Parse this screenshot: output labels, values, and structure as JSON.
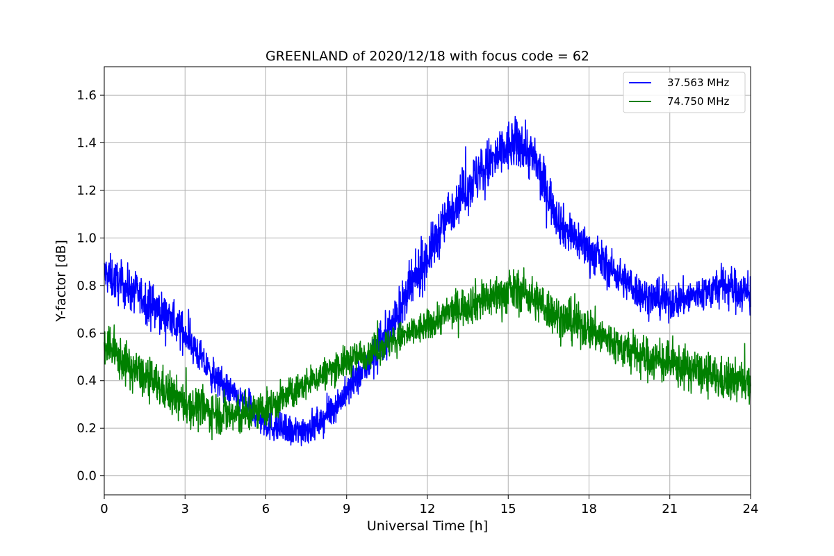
{
  "chart_data": {
    "type": "line",
    "title": "GREENLAND of 2020/12/18 with focus code = 62",
    "xlabel": "Universal Time [h]",
    "ylabel": "Y-factor [dB]",
    "xlim": [
      0,
      24
    ],
    "ylim": [
      -0.08,
      1.72
    ],
    "xticks": [
      0,
      3,
      6,
      9,
      12,
      15,
      18,
      21,
      24
    ],
    "yticks": [
      0.0,
      0.2,
      0.4,
      0.6,
      0.8,
      1.0,
      1.2,
      1.4,
      1.6
    ],
    "xtick_labels": [
      "0",
      "3",
      "6",
      "9",
      "12",
      "15",
      "18",
      "21",
      "24"
    ],
    "ytick_labels": [
      "0.0",
      "0.2",
      "0.4",
      "0.6",
      "0.8",
      "1.0",
      "1.2",
      "1.4",
      "1.6"
    ],
    "grid": true,
    "legend_position": "top-right",
    "series": [
      {
        "name": "37.563 MHz",
        "color": "#0000ff",
        "x": [
          0,
          1,
          2,
          3,
          4,
          5,
          6,
          7,
          8,
          9,
          10,
          11,
          12,
          13,
          14,
          15,
          15.5,
          16,
          16.5,
          17,
          18,
          19,
          20,
          21,
          22,
          23,
          24
        ],
        "y": [
          0.85,
          0.78,
          0.7,
          0.6,
          0.42,
          0.32,
          0.22,
          0.18,
          0.22,
          0.35,
          0.5,
          0.7,
          0.92,
          1.15,
          1.28,
          1.38,
          1.4,
          1.32,
          1.18,
          1.05,
          0.95,
          0.85,
          0.76,
          0.73,
          0.76,
          0.8,
          0.76
        ],
        "spread": [
          0.08,
          0.08,
          0.08,
          0.07,
          0.06,
          0.06,
          0.06,
          0.06,
          0.06,
          0.06,
          0.07,
          0.09,
          0.09,
          0.09,
          0.1,
          0.1,
          0.1,
          0.1,
          0.09,
          0.08,
          0.08,
          0.07,
          0.07,
          0.07,
          0.07,
          0.08,
          0.08
        ]
      },
      {
        "name": "74.750 MHz",
        "color": "#008000",
        "x": [
          0,
          1,
          2,
          3,
          4,
          5,
          6,
          7,
          8,
          9,
          10,
          11,
          12,
          13,
          14,
          15,
          15.5,
          16,
          16.5,
          17,
          18,
          19,
          20,
          21,
          22,
          23,
          24
        ],
        "y": [
          0.55,
          0.45,
          0.38,
          0.3,
          0.27,
          0.25,
          0.28,
          0.35,
          0.42,
          0.48,
          0.53,
          0.58,
          0.63,
          0.7,
          0.74,
          0.77,
          0.78,
          0.74,
          0.7,
          0.66,
          0.62,
          0.55,
          0.5,
          0.47,
          0.44,
          0.4,
          0.4
        ],
        "spread": [
          0.08,
          0.08,
          0.08,
          0.08,
          0.08,
          0.08,
          0.07,
          0.06,
          0.06,
          0.06,
          0.06,
          0.06,
          0.06,
          0.07,
          0.08,
          0.08,
          0.08,
          0.08,
          0.08,
          0.08,
          0.08,
          0.08,
          0.08,
          0.08,
          0.08,
          0.08,
          0.08
        ]
      }
    ]
  }
}
